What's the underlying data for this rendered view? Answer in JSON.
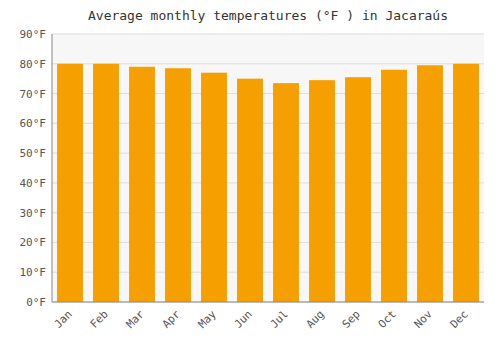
{
  "chart_data": {
    "type": "bar",
    "title": "Average monthly temperatures (°F ) in Jacaraús",
    "categories": [
      "Jan",
      "Feb",
      "Mar",
      "Apr",
      "May",
      "Jun",
      "Jul",
      "Aug",
      "Sep",
      "Oct",
      "Nov",
      "Dec"
    ],
    "values": [
      80.0,
      80.0,
      79.0,
      78.5,
      77.0,
      75.0,
      73.5,
      74.5,
      75.5,
      78.0,
      79.5,
      80.0
    ],
    "color": "#F5A000",
    "ylim": [
      0,
      90
    ],
    "yticks": [
      {
        "value": 0,
        "label": "0°F"
      },
      {
        "value": 10,
        "label": "10°F"
      },
      {
        "value": 20,
        "label": "20°F"
      },
      {
        "value": 30,
        "label": "30°F"
      },
      {
        "value": 40,
        "label": "40°F"
      },
      {
        "value": 50,
        "label": "50°F"
      },
      {
        "value": 60,
        "label": "60°F"
      },
      {
        "value": 70,
        "label": "70°F"
      },
      {
        "value": 80,
        "label": "80°F"
      },
      {
        "value": 90,
        "label": "90°F"
      }
    ],
    "grid": true
  }
}
